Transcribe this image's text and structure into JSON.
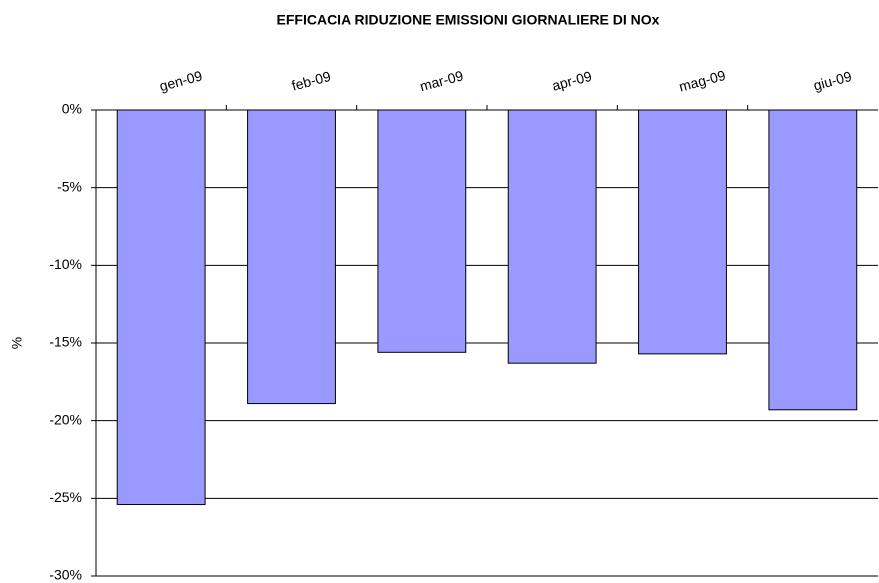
{
  "chart_data": {
    "type": "bar",
    "title": "EFFICACIA RIDUZIONE EMISSIONI GIORNALIERE DI NOx",
    "y_label": "%",
    "categories": [
      "gen-09",
      "feb-09",
      "mar-09",
      "apr-09",
      "mag-09",
      "giu-09"
    ],
    "values": [
      -25.4,
      -18.9,
      -15.6,
      -16.3,
      -15.7,
      -19.3
    ],
    "color": "#9999ff",
    "ylim": [
      -30,
      0
    ],
    "yticks": [
      {
        "value": 0,
        "label": "0%"
      },
      {
        "value": -5,
        "label": "-5%"
      },
      {
        "value": -10,
        "label": "-10%"
      },
      {
        "value": -15,
        "label": "-15%"
      },
      {
        "value": -20,
        "label": "-20%"
      },
      {
        "value": -25,
        "label": "-25%"
      },
      {
        "value": -30,
        "label": "-30%"
      }
    ],
    "grid": true
  }
}
